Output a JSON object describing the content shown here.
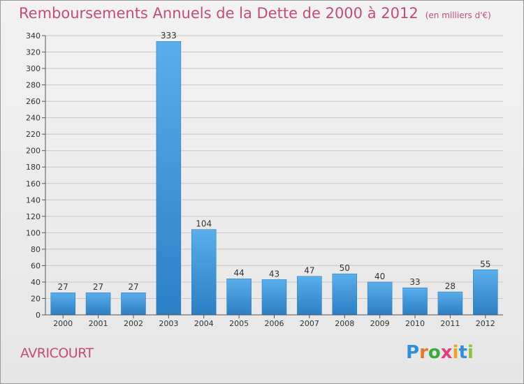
{
  "chart_data": {
    "type": "bar",
    "title": "Remboursements Annuels de la Dette de 2000 à 2012",
    "unit": "(en milliers d'€)",
    "categories": [
      "2000",
      "2001",
      "2002",
      "2003",
      "2004",
      "2005",
      "2006",
      "2007",
      "2008",
      "2009",
      "2010",
      "2011",
      "2012"
    ],
    "values": [
      27,
      27,
      27,
      333,
      104,
      44,
      43,
      47,
      50,
      40,
      33,
      28,
      55
    ],
    "ylim": [
      0,
      340
    ],
    "yticks": [
      0,
      20,
      40,
      60,
      80,
      100,
      120,
      140,
      160,
      180,
      200,
      220,
      240,
      260,
      280,
      300,
      320,
      340
    ],
    "grid": true,
    "bar_color": "#3a92d6"
  },
  "commune": "AVRICOURT",
  "brand": {
    "letters": [
      "P",
      "r",
      "o",
      "x",
      "i",
      "t",
      "i"
    ],
    "colors": [
      "#2f8fd8",
      "#e07a2a",
      "#3aaa3a",
      "#e04080",
      "#f0a020",
      "#2f8fd8",
      "#8ac43a"
    ]
  }
}
